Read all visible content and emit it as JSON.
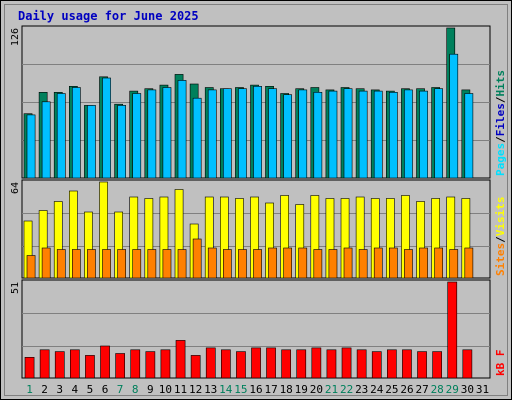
{
  "chart_data": {
    "title": "Daily usage for June 2025",
    "type": "bar",
    "categories": [
      "1",
      "2",
      "3",
      "4",
      "5",
      "6",
      "7",
      "8",
      "9",
      "10",
      "11",
      "12",
      "13",
      "14",
      "15",
      "16",
      "17",
      "18",
      "19",
      "20",
      "21",
      "22",
      "23",
      "24",
      "25",
      "26",
      "27",
      "28",
      "29",
      "30",
      "31"
    ],
    "weekend_days": [
      "1",
      "7",
      "8",
      "14",
      "15",
      "21",
      "22",
      "28",
      "29"
    ],
    "colors": {
      "hits": "#00805c",
      "files": "#00c0ff",
      "pages": "#00e0ff",
      "visits": "#ffff00",
      "sites": "#ff8000",
      "kbf": "#ff0000",
      "title": "#0000c0",
      "weekday_label": "#000000",
      "weekend_label": "#00805c"
    },
    "panels": [
      {
        "id": "hits",
        "max_label": "126",
        "ymax": 126,
        "legend": [
          {
            "text": "Pages",
            "color": "#00e0ff"
          },
          {
            "text": "/",
            "color": "#000000"
          },
          {
            "text": "Files",
            "color": "#0000c0"
          },
          {
            "text": "/",
            "color": "#000000"
          },
          {
            "text": "Hits",
            "color": "#00805c"
          }
        ],
        "series": [
          {
            "key": "hits",
            "values": [
              54,
              72,
              72,
              77,
              61,
              85,
              62,
              73,
              75,
              78,
              87,
              79,
              76,
              75,
              76,
              78,
              77,
              71,
              75,
              76,
              74,
              76,
              75,
              74,
              73,
              75,
              75,
              76,
              126,
              74,
              0
            ]
          },
          {
            "key": "files",
            "values": [
              53,
              64,
              71,
              76,
              61,
              84,
              61,
              71,
              74,
              76,
              82,
              67,
              74,
              75,
              75,
              77,
              75,
              70,
              74,
              72,
              73,
              75,
              73,
              73,
              72,
              74,
              73,
              75,
              104,
              71,
              0
            ]
          }
        ]
      },
      {
        "id": "visits",
        "max_label": "64",
        "ymax": 64,
        "legend": [
          {
            "text": "Sites",
            "color": "#ff8000"
          },
          {
            "text": "/",
            "color": "#000000"
          },
          {
            "text": "Visits",
            "color": "#ffff00"
          }
        ],
        "series": [
          {
            "key": "visits",
            "values": [
              38,
              45,
              51,
              58,
              44,
              64,
              44,
              54,
              53,
              54,
              59,
              36,
              54,
              54,
              53,
              54,
              50,
              55,
              49,
              55,
              53,
              53,
              54,
              53,
              53,
              55,
              51,
              53,
              54,
              53,
              0
            ]
          },
          {
            "key": "sites",
            "values": [
              15,
              20,
              19,
              19,
              19,
              19,
              19,
              19,
              19,
              19,
              19,
              26,
              20,
              19,
              19,
              19,
              20,
              20,
              20,
              19,
              19,
              20,
              19,
              20,
              20,
              19,
              20,
              20,
              19,
              20,
              0
            ]
          }
        ]
      },
      {
        "id": "kbf",
        "max_label": "51",
        "ymax": 51,
        "legend": [
          {
            "text": "kB F",
            "color": "#ff0000"
          }
        ],
        "series": [
          {
            "key": "kbf",
            "values": [
              11,
              15,
              14,
              15,
              12,
              17,
              13,
              15,
              14,
              15,
              20,
              12,
              16,
              15,
              14,
              16,
              16,
              15,
              15,
              16,
              15,
              16,
              15,
              14,
              15,
              15,
              14,
              14,
              51,
              15,
              0
            ]
          }
        ]
      }
    ]
  }
}
